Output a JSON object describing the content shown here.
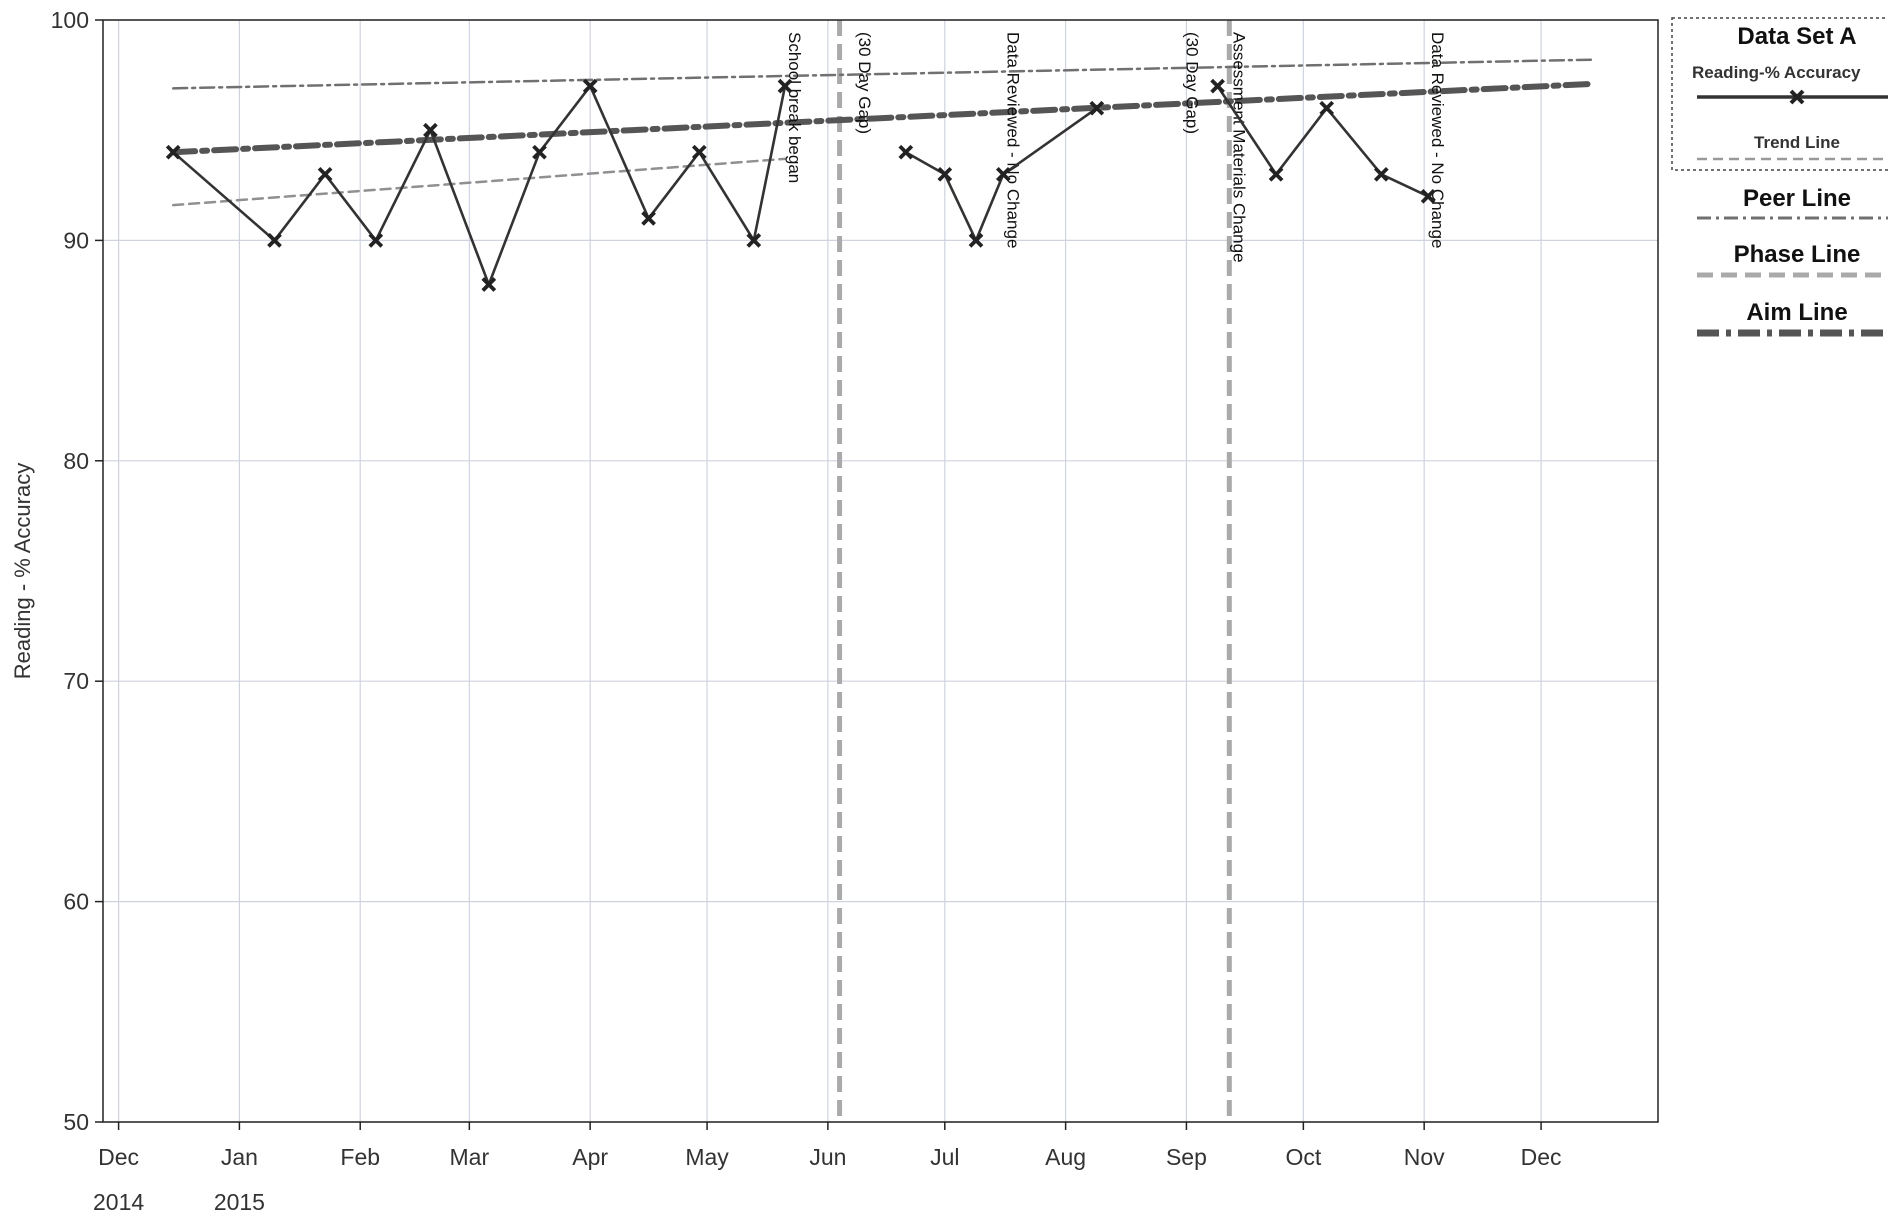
{
  "chart_data": {
    "type": "line",
    "ylabel": "Reading - % Accuracy",
    "ylim": [
      50,
      100
    ],
    "yticks": [
      50,
      60,
      70,
      80,
      90,
      100
    ],
    "xlim": [
      "2014-11-27",
      "2015-12-31"
    ],
    "xticks": [
      {
        "date": "2014-12-01",
        "label": "Dec"
      },
      {
        "date": "2015-01-01",
        "label": "Jan"
      },
      {
        "date": "2015-02-01",
        "label": "Feb"
      },
      {
        "date": "2015-03-01",
        "label": "Mar"
      },
      {
        "date": "2015-04-01",
        "label": "Apr"
      },
      {
        "date": "2015-05-01",
        "label": "May"
      },
      {
        "date": "2015-06-01",
        "label": "Jun"
      },
      {
        "date": "2015-07-01",
        "label": "Jul"
      },
      {
        "date": "2015-08-01",
        "label": "Aug"
      },
      {
        "date": "2015-09-01",
        "label": "Sep"
      },
      {
        "date": "2015-10-01",
        "label": "Oct"
      },
      {
        "date": "2015-11-01",
        "label": "Nov"
      },
      {
        "date": "2015-12-01",
        "label": "Dec"
      }
    ],
    "year_labels": [
      {
        "date": "2014-12-01",
        "label": "2014"
      },
      {
        "date": "2015-01-01",
        "label": "2015"
      }
    ],
    "grid": true,
    "series": [
      {
        "name": "Reading-% Accuracy",
        "color": "#333333",
        "segments": [
          [
            {
              "x": "2014-12-15",
              "y": 94
            },
            {
              "x": "2015-01-10",
              "y": 90
            },
            {
              "x": "2015-01-23",
              "y": 93
            },
            {
              "x": "2015-02-05",
              "y": 90
            },
            {
              "x": "2015-02-19",
              "y": 95
            },
            {
              "x": "2015-03-06",
              "y": 88
            },
            {
              "x": "2015-03-19",
              "y": 94
            },
            {
              "x": "2015-04-01",
              "y": 97
            },
            {
              "x": "2015-04-16",
              "y": 91
            },
            {
              "x": "2015-04-29",
              "y": 94
            },
            {
              "x": "2015-05-13",
              "y": 90
            },
            {
              "x": "2015-05-21",
              "y": 97
            }
          ],
          [
            {
              "x": "2015-06-21",
              "y": 94
            },
            {
              "x": "2015-07-01",
              "y": 93
            },
            {
              "x": "2015-07-09",
              "y": 90
            },
            {
              "x": "2015-07-16",
              "y": 93
            },
            {
              "x": "2015-08-09",
              "y": 96
            }
          ],
          [
            {
              "x": "2015-09-09",
              "y": 97
            },
            {
              "x": "2015-09-24",
              "y": 93
            },
            {
              "x": "2015-10-07",
              "y": 96
            },
            {
              "x": "2015-10-21",
              "y": 93
            },
            {
              "x": "2015-11-02",
              "y": 92
            }
          ]
        ]
      },
      {
        "name": "Trend Line",
        "color": "#909090",
        "points": [
          {
            "x": "2014-12-15",
            "y": 91.6
          },
          {
            "x": "2015-05-21",
            "y": 93.7
          }
        ]
      },
      {
        "name": "Peer Line",
        "color": "#707070",
        "points": [
          {
            "x": "2014-12-15",
            "y": 96.9
          },
          {
            "x": "2015-12-14",
            "y": 98.2
          }
        ]
      },
      {
        "name": "Aim Line",
        "color": "#555555",
        "points": [
          {
            "x": "2014-12-15",
            "y": 94
          },
          {
            "x": "2015-12-14",
            "y": 97.1
          }
        ]
      }
    ],
    "phase_lines": [
      {
        "date": "2015-06-04",
        "name": "Phase Line"
      },
      {
        "date": "2015-09-12",
        "name": "Phase Line"
      }
    ],
    "annotations": [
      {
        "x": "2015-05-21",
        "text": "School break began"
      },
      {
        "x": "2015-06-08",
        "text": "(30 Day Gap)"
      },
      {
        "x": "2015-07-16",
        "text": "Data Reviewed - No Change"
      },
      {
        "x": "2015-08-31",
        "text": "(30 Day Gap)"
      },
      {
        "x": "2015-09-12",
        "text": "Assessment Materials Change"
      },
      {
        "x": "2015-11-02",
        "text": "Data Reviewed - No Change"
      }
    ],
    "legend": {
      "placement": "right",
      "group_title": "Data Set A",
      "entries": [
        {
          "label": "Reading-% Accuracy",
          "style": "marker-line"
        },
        {
          "label": "Trend Line",
          "style": "dashed-light"
        },
        {
          "label": "Peer Line",
          "style": "dash-dot-thin"
        },
        {
          "label": "Phase Line",
          "style": "dashed-thick-light"
        },
        {
          "label": "Aim Line",
          "style": "dash-dot-thick"
        }
      ]
    }
  }
}
